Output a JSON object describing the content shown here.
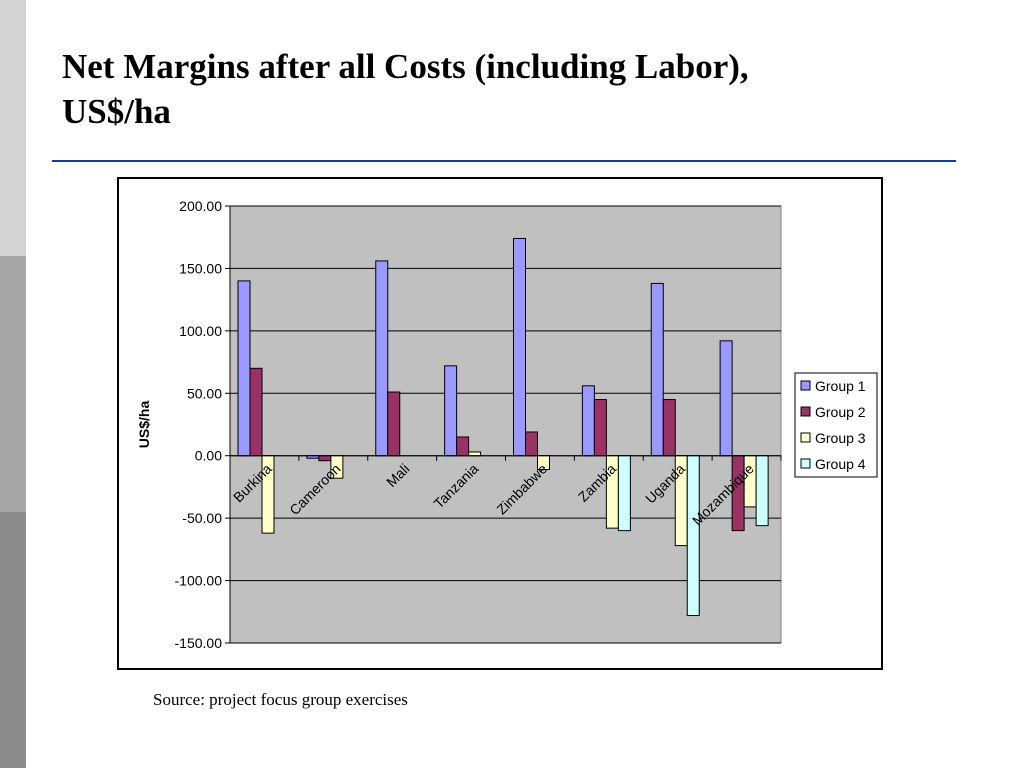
{
  "slide": {
    "title_line1": "Net Margins after all Costs (including Labor),",
    "title_line2": "US$/ha",
    "source": "Source: project focus group exercises"
  },
  "chart_data": {
    "type": "bar",
    "title": "",
    "xlabel": "",
    "ylabel": "US$/ha",
    "ylim": [
      -150,
      200
    ],
    "yticks": [
      200,
      150,
      100,
      50,
      0,
      -50,
      -100,
      -150
    ],
    "ytick_labels": [
      "200.00",
      "150.00",
      "100.00",
      "50.00",
      "0.00",
      "-50.00",
      "-100.00",
      "-150.00"
    ],
    "grid": true,
    "legend_position": "right",
    "plot_background": "#c0c0c0",
    "categories": [
      "Burkina",
      "Cameroon",
      "Mali",
      "Tanzania",
      "Zimbabwe",
      "Zambia",
      "Uganda",
      "Mozambique"
    ],
    "series": [
      {
        "name": "Group 1",
        "color": "#9999ff",
        "values": [
          140,
          -2,
          156,
          72,
          174,
          56,
          138,
          92
        ]
      },
      {
        "name": "Group 2",
        "color": "#993366",
        "values": [
          70,
          -4,
          51,
          15,
          19,
          45,
          45,
          -60
        ]
      },
      {
        "name": "Group 3",
        "color": "#ffffcc",
        "values": [
          -62,
          -18,
          null,
          3,
          -11,
          -58,
          -72,
          -41
        ]
      },
      {
        "name": "Group 4",
        "color": "#ccffff",
        "values": [
          null,
          null,
          null,
          null,
          null,
          -60,
          -128,
          -56
        ]
      }
    ]
  }
}
